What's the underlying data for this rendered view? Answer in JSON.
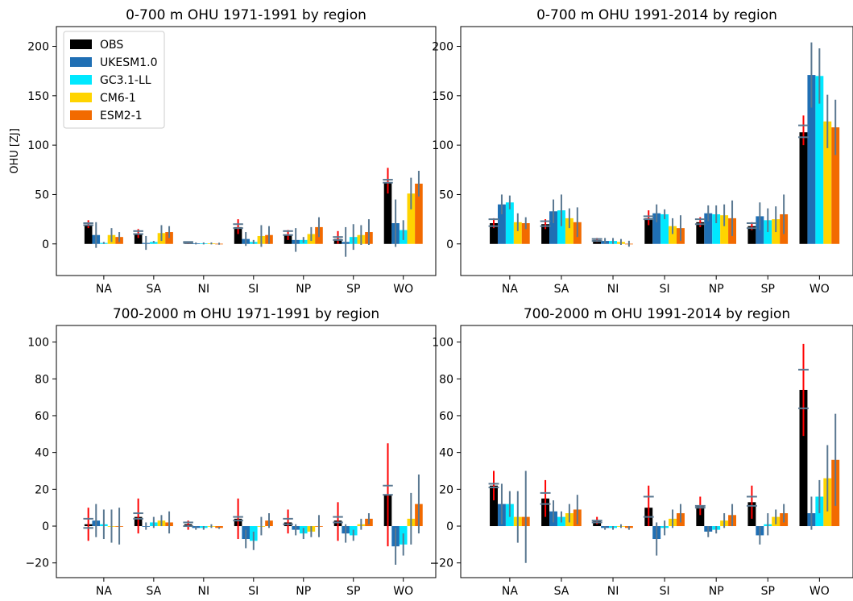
{
  "colors": {
    "OBS": "#000000",
    "UKESM1.0": "#1f6fb4",
    "GC3.1-LL": "#00e8ff",
    "CM6-1": "#ffd400",
    "ESM2-1": "#f26a00",
    "obs_error": "#ff0000",
    "model_error": "#5a7891"
  },
  "legend": {
    "placement": "upper-left of first panel",
    "entries": [
      "OBS",
      "UKESM1.0",
      "GC3.1-LL",
      "CM6-1",
      "ESM2-1"
    ]
  },
  "chart_data": [
    {
      "type": "bar",
      "title": "0-700 m OHU 1971-1991 by region",
      "ylabel": "OHU [ZJ]",
      "ylim": [
        -32,
        220
      ],
      "yticks": [
        0,
        50,
        100,
        150,
        200
      ],
      "categories": [
        "NA",
        "SA",
        "NI",
        "SI",
        "NP",
        "SP",
        "WO"
      ],
      "series": [
        {
          "name": "OBS",
          "values": [
            19,
            10,
            1,
            17,
            9,
            5,
            62
          ],
          "err_lo": [
            3,
            4,
            1,
            7,
            5,
            5,
            11
          ],
          "err_hi": [
            5,
            5,
            1,
            8,
            5,
            8,
            15
          ]
        },
        {
          "name": "UKESM1.0",
          "values": [
            9,
            1,
            0.5,
            5,
            4,
            2,
            21
          ],
          "err_lo": [
            13,
            7,
            1,
            7,
            12,
            15,
            24
          ],
          "err_hi": [
            13,
            7,
            1,
            7,
            12,
            15,
            24
          ]
        },
        {
          "name": "GC3.1-LL",
          "values": [
            1,
            2,
            0.5,
            2,
            4,
            7,
            14
          ],
          "err_lo": [
            1,
            1,
            1,
            2,
            3,
            13,
            10
          ],
          "err_hi": [
            1,
            1,
            1,
            2,
            3,
            13,
            10
          ]
        },
        {
          "name": "CM6-1",
          "values": [
            9,
            11,
            0.5,
            8,
            10,
            9,
            51
          ],
          "err_lo": [
            7,
            8,
            1,
            11,
            7,
            10,
            16
          ],
          "err_hi": [
            7,
            8,
            1,
            11,
            7,
            10,
            16
          ]
        },
        {
          "name": "ESM2-1",
          "values": [
            7,
            12,
            0.2,
            9,
            17,
            12,
            61
          ],
          "err_lo": [
            5,
            6,
            1,
            9,
            10,
            13,
            13
          ],
          "err_hi": [
            5,
            6,
            1,
            9,
            10,
            13,
            13
          ]
        }
      ],
      "obs_bracket_lo": [
        19,
        10,
        1,
        16,
        9,
        4,
        62
      ],
      "obs_bracket_hi": [
        21,
        13,
        2,
        20,
        13,
        7,
        65
      ]
    },
    {
      "type": "bar",
      "title": "0-700 m OHU 1991-2014 by region",
      "ylabel": "",
      "ylim": [
        -32,
        220
      ],
      "yticks": [
        0,
        50,
        100,
        150,
        200
      ],
      "categories": [
        "NA",
        "SA",
        "NI",
        "SI",
        "NP",
        "SP",
        "WO"
      ],
      "series": [
        {
          "name": "OBS",
          "values": [
            21,
            20,
            4,
            26,
            22,
            18,
            113
          ],
          "err_lo": [
            5,
            5,
            2,
            7,
            5,
            4,
            13
          ],
          "err_hi": [
            5,
            5,
            2,
            8,
            5,
            4,
            17
          ]
        },
        {
          "name": "UKESM1.0",
          "values": [
            40,
            33,
            3,
            31,
            31,
            28,
            171
          ],
          "err_lo": [
            10,
            12,
            3,
            9,
            8,
            14,
            33
          ],
          "err_hi": [
            10,
            12,
            3,
            9,
            8,
            14,
            33
          ]
        },
        {
          "name": "GC3.1-LL",
          "values": [
            42,
            34,
            3,
            30,
            30,
            24,
            170
          ],
          "err_lo": [
            7,
            16,
            3,
            5,
            9,
            12,
            28
          ],
          "err_hi": [
            7,
            16,
            3,
            5,
            9,
            12,
            28
          ]
        },
        {
          "name": "CM6-1",
          "values": [
            22,
            26,
            2,
            18,
            29,
            25,
            124
          ],
          "err_lo": [
            9,
            10,
            3,
            8,
            11,
            13,
            27
          ],
          "err_hi": [
            9,
            10,
            3,
            8,
            11,
            13,
            27
          ]
        },
        {
          "name": "ESM2-1",
          "values": [
            21,
            22,
            0.2,
            16,
            26,
            30,
            118
          ],
          "err_lo": [
            6,
            15,
            3,
            13,
            18,
            20,
            28
          ],
          "err_hi": [
            6,
            15,
            3,
            13,
            18,
            20,
            28
          ]
        }
      ],
      "obs_bracket_lo": [
        18,
        18,
        3,
        25,
        20,
        16,
        108
      ],
      "obs_bracket_hi": [
        25,
        23,
        5,
        28,
        25,
        21,
        120
      ]
    },
    {
      "type": "bar",
      "title": "700-2000 m OHU 1971-1991 by region",
      "ylabel": "",
      "ylim": [
        -28,
        109
      ],
      "yticks": [
        -20,
        0,
        20,
        40,
        60,
        80,
        100
      ],
      "categories": [
        "NA",
        "SA",
        "NI",
        "SI",
        "NP",
        "SP",
        "WO"
      ],
      "series": [
        {
          "name": "OBS",
          "values": [
            1,
            5,
            1,
            4,
            2,
            3,
            17
          ],
          "err_lo": [
            9,
            9,
            3,
            11,
            6,
            11,
            28
          ],
          "err_hi": [
            9,
            10,
            2,
            11,
            7,
            10,
            28
          ]
        },
        {
          "name": "UKESM1.0",
          "values": [
            3,
            0,
            -1,
            -7,
            -2,
            -4,
            -11
          ],
          "err_lo": [
            9,
            2,
            1,
            5,
            3,
            5,
            10
          ],
          "err_hi": [
            9,
            2,
            1,
            5,
            3,
            5,
            10
          ]
        },
        {
          "name": "GC3.1-LL",
          "values": [
            1,
            2,
            -1,
            -8,
            -4,
            -5,
            -10
          ],
          "err_lo": [
            8,
            3,
            1,
            5,
            3,
            3,
            6
          ],
          "err_hi": [
            8,
            3,
            1,
            5,
            3,
            3,
            6
          ]
        },
        {
          "name": "CM6-1",
          "values": [
            0,
            3,
            0,
            0,
            -3,
            1,
            4
          ],
          "err_lo": [
            9,
            3,
            1,
            5,
            3,
            3,
            14
          ],
          "err_hi": [
            9,
            3,
            1,
            5,
            3,
            3,
            14
          ]
        },
        {
          "name": "ESM2-1",
          "values": [
            0,
            2,
            -1,
            3,
            0,
            4,
            12
          ],
          "err_lo": [
            10,
            6,
            0.5,
            4,
            6,
            3,
            16
          ],
          "err_hi": [
            10,
            6,
            0.5,
            4,
            6,
            3,
            16
          ]
        }
      ],
      "obs_bracket_lo": [
        -1,
        4,
        0,
        3,
        1,
        2,
        17
      ],
      "obs_bracket_hi": [
        4,
        7,
        2,
        5,
        4,
        5,
        22
      ]
    },
    {
      "type": "bar",
      "title": "700-2000 m OHU 1991-2014 by region",
      "ylabel": "",
      "ylim": [
        -28,
        109
      ],
      "yticks": [
        -20,
        0,
        20,
        40,
        60,
        80,
        100
      ],
      "categories": [
        "NA",
        "SA",
        "NI",
        "SI",
        "NP",
        "SP",
        "WO"
      ],
      "series": [
        {
          "name": "OBS",
          "values": [
            22,
            15,
            3,
            10,
            11,
            13,
            74
          ],
          "err_lo": [
            8,
            10,
            2,
            10,
            5,
            9,
            25
          ],
          "err_hi": [
            8,
            10,
            2,
            12,
            5,
            9,
            25
          ]
        },
        {
          "name": "UKESM1.0",
          "values": [
            12,
            8,
            -1,
            -7,
            -3,
            -5,
            7
          ],
          "err_lo": [
            11,
            6,
            1,
            9,
            3,
            5,
            9
          ],
          "err_hi": [
            11,
            6,
            1,
            9,
            3,
            5,
            9
          ]
        },
        {
          "name": "GC3.1-LL",
          "values": [
            12,
            5,
            -1,
            -1,
            -2,
            1,
            16
          ],
          "err_lo": [
            7,
            3,
            1,
            4,
            2,
            6,
            9
          ],
          "err_hi": [
            7,
            3,
            1,
            4,
            2,
            6,
            9
          ]
        },
        {
          "name": "CM6-1",
          "values": [
            5,
            7,
            0,
            4,
            3,
            5,
            26
          ],
          "err_lo": [
            14,
            5,
            1,
            5,
            4,
            4,
            18
          ],
          "err_hi": [
            14,
            5,
            1,
            5,
            4,
            4,
            18
          ]
        },
        {
          "name": "ESM2-1",
          "values": [
            5,
            9,
            -1,
            7,
            6,
            7,
            36
          ],
          "err_lo": [
            25,
            8,
            1,
            5,
            6,
            5,
            25
          ],
          "err_hi": [
            25,
            8,
            1,
            5,
            6,
            5,
            25
          ]
        }
      ],
      "obs_bracket_lo": [
        21,
        12,
        2,
        5,
        10,
        11,
        64
      ],
      "obs_bracket_hi": [
        23,
        18,
        3,
        16,
        11,
        16,
        85
      ]
    }
  ]
}
